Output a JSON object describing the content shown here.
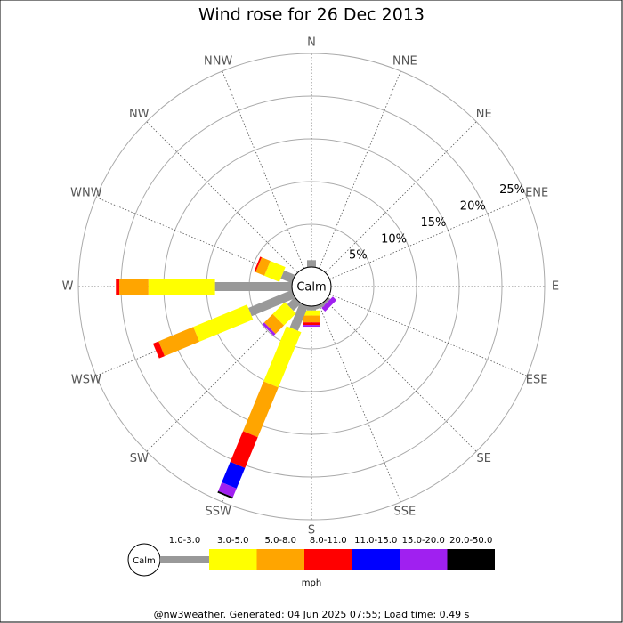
{
  "chart_data": {
    "type": "windrose",
    "title": "Wind rose for 26 Dec 2013",
    "center_label": "Calm",
    "categories": [
      "N",
      "NNE",
      "NE",
      "ENE",
      "E",
      "ESE",
      "SE",
      "SSE",
      "S",
      "SSW",
      "SW",
      "WSW",
      "W",
      "WNW",
      "NW",
      "NNW"
    ],
    "rlim": [
      0,
      25
    ],
    "rticks": [
      {
        "value": 5,
        "label": "5%"
      },
      {
        "value": 10,
        "label": "10%"
      },
      {
        "value": 15,
        "label": "15%"
      },
      {
        "value": 20,
        "label": "20%"
      },
      {
        "value": 25,
        "label": "25%"
      }
    ],
    "grid": true,
    "series": [
      {
        "name": "1.0-3.0",
        "color": "#999999",
        "values": [
          0.8,
          0,
          0,
          0,
          0,
          0,
          0.3,
          0.4,
          0.5,
          3.1,
          1.2,
          5.5,
          9.0,
          1.4,
          0,
          0
        ]
      },
      {
        "name": "3.0-5.0",
        "color": "#ffff00",
        "values": [
          0,
          0,
          0,
          0,
          0,
          0,
          0,
          0,
          0.6,
          7.0,
          2.0,
          6.8,
          7.8,
          1.9,
          0,
          0
        ]
      },
      {
        "name": "5.0-8.0",
        "color": "#ffa500",
        "values": [
          0,
          0,
          0,
          0,
          0,
          0,
          0,
          0,
          0.8,
          6.3,
          1.4,
          4.4,
          3.4,
          1.1,
          0,
          0
        ]
      },
      {
        "name": "8.0-11.0",
        "color": "#ff0000",
        "values": [
          0,
          0,
          0,
          0,
          0,
          0,
          0,
          0,
          0.3,
          3.9,
          0,
          0.7,
          0.4,
          0.2,
          0,
          0
        ]
      },
      {
        "name": "11.0-15.0",
        "color": "#0000ff",
        "values": [
          0,
          0,
          0,
          0,
          0,
          0,
          0,
          0,
          0,
          2.6,
          0,
          0,
          0,
          0,
          0,
          0
        ]
      },
      {
        "name": "15.0-20.0",
        "color": "#a020f0",
        "values": [
          0,
          0,
          0,
          0,
          0,
          0,
          0.6,
          0,
          0.2,
          1.1,
          0.3,
          0,
          0,
          0,
          0,
          0
        ]
      },
      {
        "name": "20.0-50.0",
        "color": "#000000",
        "values": [
          0,
          0,
          0,
          0,
          0,
          0,
          0,
          0,
          0,
          0.2,
          0,
          0,
          0,
          0,
          0,
          0
        ]
      }
    ],
    "legend_title": "mph",
    "footer": "@nw3weather. Generated: 04 Jun 2025 07:55; Load time: 0.49 s"
  }
}
